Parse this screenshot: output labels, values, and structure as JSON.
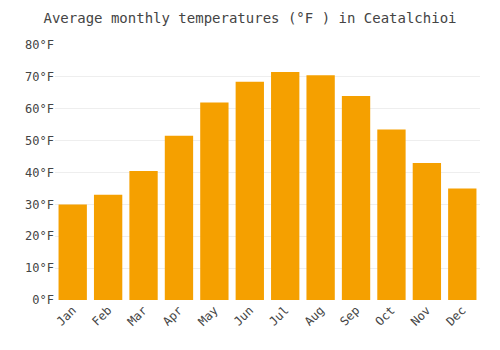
{
  "chart_data": {
    "type": "bar",
    "title": "Average monthly temperatures (°F ) in Ceatalchioi",
    "categories": [
      "Jan",
      "Feb",
      "Mar",
      "Apr",
      "May",
      "Jun",
      "Jul",
      "Aug",
      "Sep",
      "Oct",
      "Nov",
      "Dec"
    ],
    "values": [
      30,
      33,
      40.5,
      51.5,
      62,
      68.5,
      71.5,
      70.5,
      64,
      53.5,
      43,
      35
    ],
    "color": "#F5A000",
    "ylim": [
      0,
      80
    ],
    "yticks": [
      {
        "value": 0,
        "label": "0°F"
      },
      {
        "value": 10,
        "label": "10°F"
      },
      {
        "value": 20,
        "label": "20°F"
      },
      {
        "value": 30,
        "label": "30°F"
      },
      {
        "value": 40,
        "label": "40°F"
      },
      {
        "value": 50,
        "label": "50°F"
      },
      {
        "value": 60,
        "label": "60°F"
      },
      {
        "value": 70,
        "label": "70°F"
      },
      {
        "value": 80,
        "label": "80°F"
      }
    ],
    "grid": true
  }
}
